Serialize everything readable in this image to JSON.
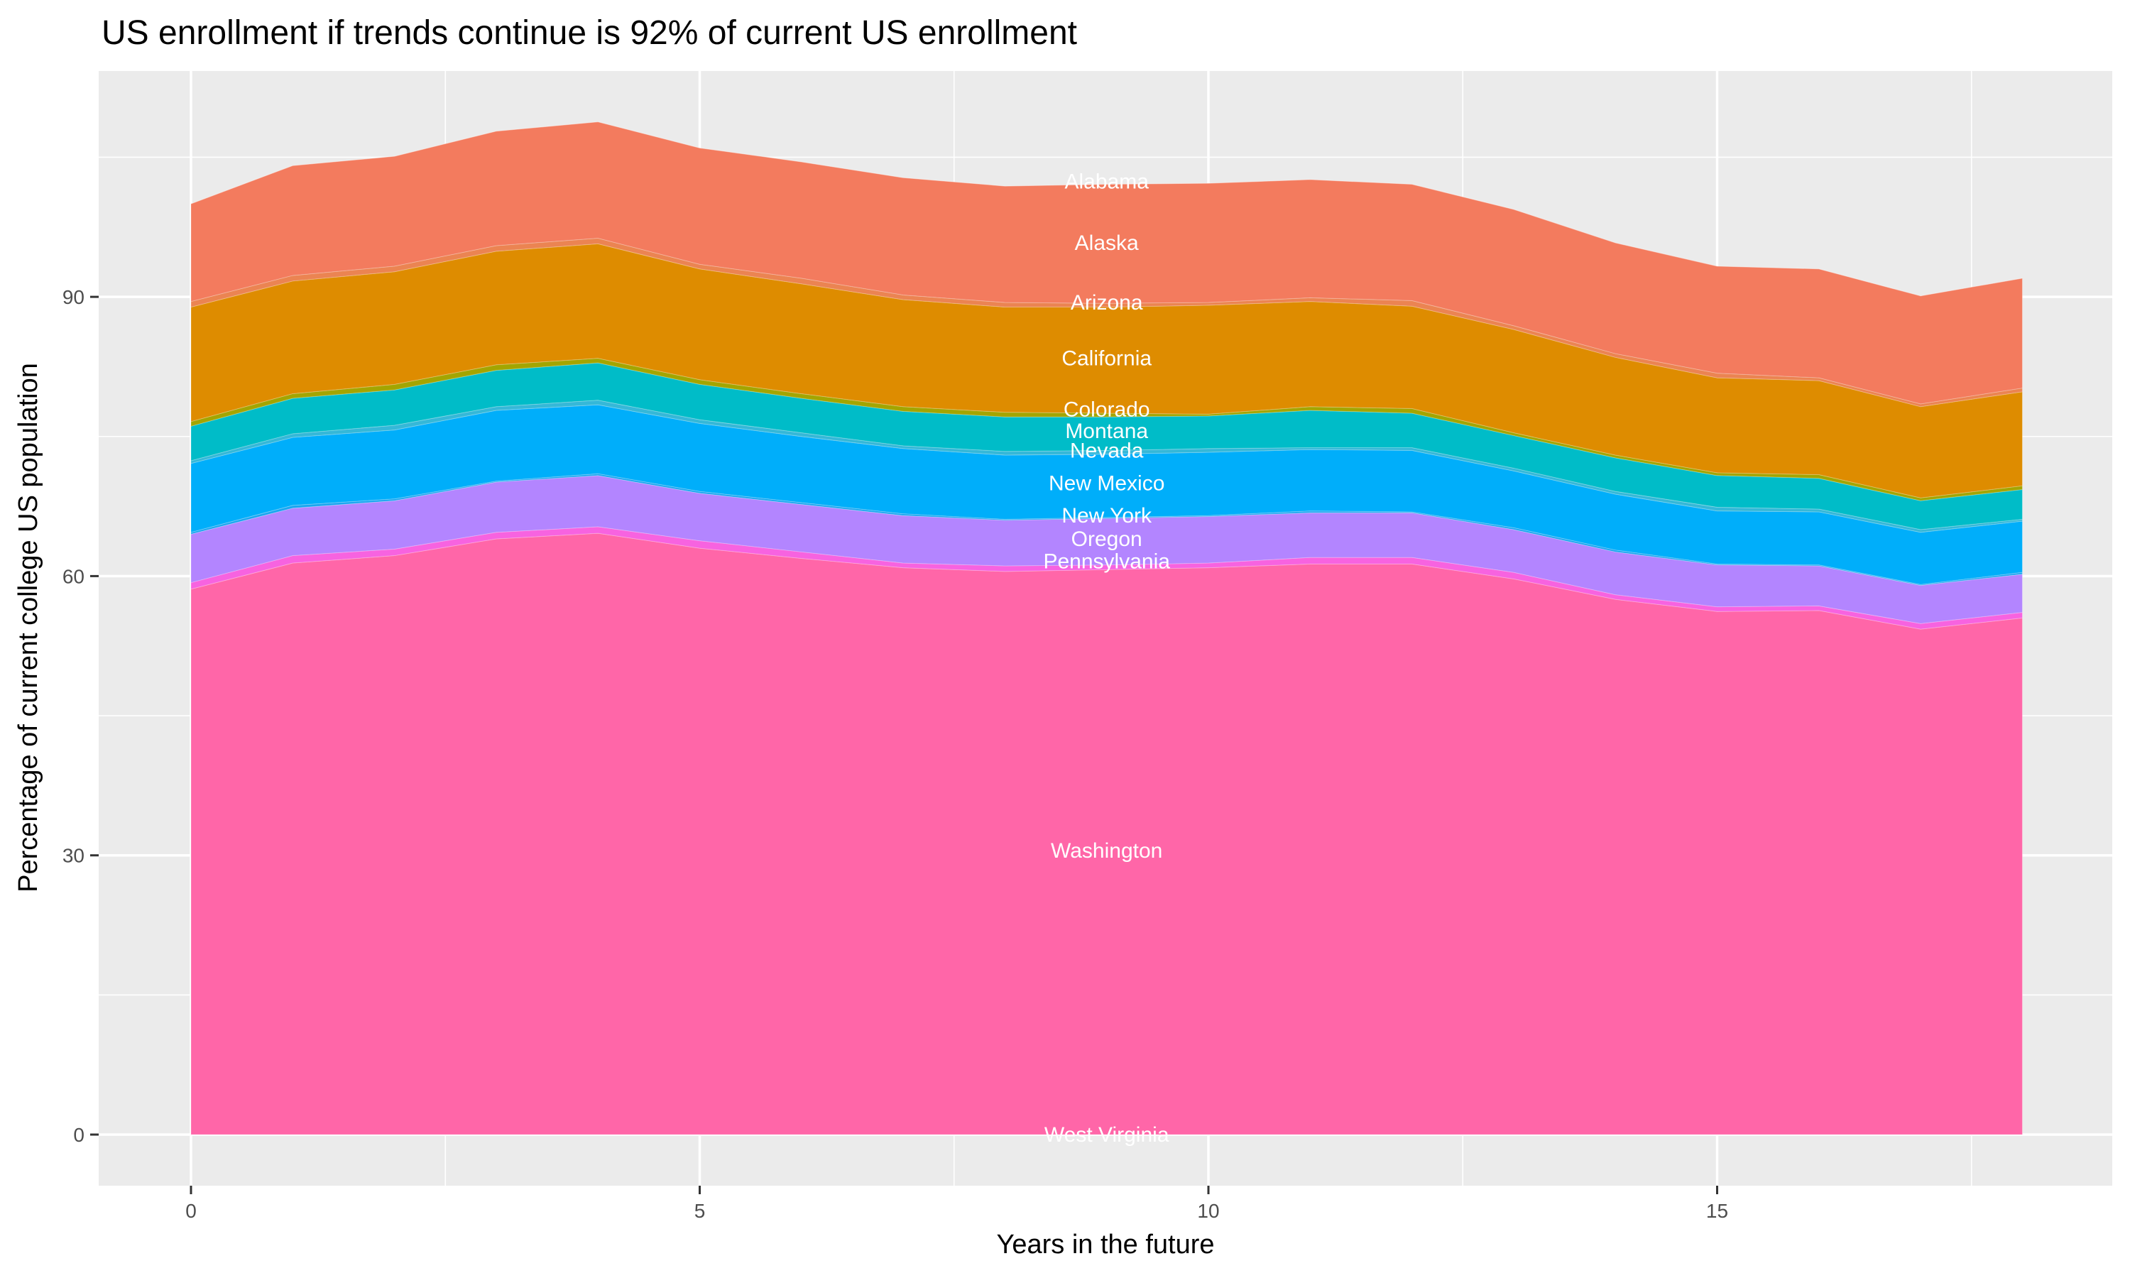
{
  "chart_data": {
    "type": "area",
    "stacked": true,
    "title": "US enrollment if trends continue is 92% of current US enrollment",
    "xlabel": "Years in the future",
    "ylabel": "Percentage of current college US population",
    "xlim": [
      -0.9,
      18.9
    ],
    "ylim": [
      -5.4,
      113.5
    ],
    "x_ticks": [
      0,
      5,
      10,
      15
    ],
    "y_ticks": [
      0,
      30,
      60,
      90
    ],
    "grid": true,
    "legend": "none",
    "x": [
      0,
      1,
      2,
      3,
      4,
      5,
      6,
      7,
      8,
      9,
      10,
      11,
      12,
      13,
      14,
      15,
      16,
      17,
      18
    ],
    "series_stack_order": "bottom-to-top",
    "series": [
      {
        "name": "West Virginia",
        "color": "#FF6C91",
        "values": [
          0,
          0,
          0,
          0,
          0,
          0,
          0,
          0,
          0,
          0,
          0,
          0,
          0,
          0,
          0,
          0,
          0,
          0,
          0
        ]
      },
      {
        "name": "Washington",
        "color": "#FF66A8",
        "values": [
          58.6,
          61.4,
          62.2,
          64.0,
          64.6,
          63.0,
          61.9,
          60.9,
          60.5,
          60.7,
          60.9,
          61.3,
          61.3,
          59.7,
          57.5,
          56.2,
          56.3,
          54.3,
          55.5
        ]
      },
      {
        "name": "Pennsylvania",
        "color": "#F763E0",
        "values": [
          0.7,
          0.8,
          0.7,
          0.7,
          0.7,
          0.8,
          0.7,
          0.5,
          0.6,
          0.5,
          0.5,
          0.7,
          0.7,
          0.7,
          0.5,
          0.5,
          0.5,
          0.6,
          0.6
        ]
      },
      {
        "name": "Oregon",
        "color": "#B385FF",
        "values": [
          5.2,
          5.1,
          5.2,
          5.4,
          5.5,
          5.1,
          5.1,
          5.1,
          4.9,
          5.0,
          5.0,
          4.8,
          4.8,
          4.6,
          4.6,
          4.5,
          4.3,
          4.1,
          4.1
        ]
      },
      {
        "name": "New York",
        "color": "#1AA6F0",
        "values": [
          0.2,
          0.3,
          0.2,
          0.1,
          0.2,
          0.2,
          0.2,
          0.2,
          0.1,
          0.1,
          0.1,
          0.2,
          0.1,
          0.2,
          0.2,
          0.1,
          0.1,
          0.1,
          0.2
        ]
      },
      {
        "name": "New Mexico",
        "color": "#00AEFA",
        "values": [
          7.4,
          7.3,
          7.4,
          7.6,
          7.4,
          7.3,
          7.1,
          7.0,
          6.9,
          6.8,
          6.8,
          6.6,
          6.6,
          6.1,
          6.0,
          5.7,
          5.7,
          5.6,
          5.5
        ]
      },
      {
        "name": "Nevada",
        "color": "#35B8D8",
        "values": [
          0.3,
          0.4,
          0.5,
          0.4,
          0.5,
          0.4,
          0.4,
          0.3,
          0.4,
          0.4,
          0.4,
          0.2,
          0.3,
          0.3,
          0.3,
          0.4,
          0.3,
          0.3,
          0.2
        ]
      },
      {
        "name": "Montana",
        "color": "#00BCC8",
        "values": [
          3.7,
          3.8,
          3.8,
          3.9,
          4.0,
          3.8,
          3.7,
          3.7,
          3.7,
          3.6,
          3.5,
          4.0,
          3.7,
          3.5,
          3.6,
          3.4,
          3.3,
          3.1,
          3.2
        ]
      },
      {
        "name": "Colorado",
        "color": "#A3A500",
        "values": [
          0.5,
          0.5,
          0.6,
          0.6,
          0.5,
          0.5,
          0.5,
          0.5,
          0.5,
          0.4,
          0.2,
          0.4,
          0.5,
          0.3,
          0.3,
          0.3,
          0.4,
          0.3,
          0.4
        ]
      },
      {
        "name": "California",
        "color": "#DE8C00",
        "values": [
          12.3,
          12.1,
          12.1,
          12.2,
          12.3,
          11.9,
          11.8,
          11.5,
          11.3,
          11.4,
          11.7,
          11.3,
          11.0,
          11.1,
          10.5,
          10.2,
          10.1,
          9.8,
          10.1
        ]
      },
      {
        "name": "Arizona",
        "color": "#EB8452",
        "values": [
          0.6,
          0.6,
          0.6,
          0.6,
          0.6,
          0.5,
          0.6,
          0.5,
          0.5,
          0.4,
          0.3,
          0.4,
          0.6,
          0.4,
          0.4,
          0.5,
          0.3,
          0.3,
          0.4
        ]
      },
      {
        "name": "Alaska",
        "color": "#F37B5E",
        "values": [
          10.5,
          11.8,
          11.8,
          12.3,
          12.5,
          12.5,
          12.5,
          12.6,
          12.5,
          12.8,
          12.8,
          12.7,
          12.5,
          12.5,
          11.9,
          11.5,
          11.7,
          11.6,
          11.8
        ]
      },
      {
        "name": "Alabama",
        "color": "#F8766D",
        "values": [
          0,
          0,
          0,
          0,
          0,
          0,
          0,
          0,
          0,
          0,
          0,
          0,
          0,
          0,
          0,
          0,
          0,
          0,
          0
        ]
      }
    ],
    "annotations": [
      {
        "text": "Alabama",
        "x": 9,
        "y": 102.4
      },
      {
        "text": "Alaska",
        "x": 9,
        "y": 95.8
      },
      {
        "text": "Arizona",
        "x": 9,
        "y": 89.4
      },
      {
        "text": "California",
        "x": 9,
        "y": 83.4
      },
      {
        "text": "Colorado",
        "x": 9,
        "y": 77.9
      },
      {
        "text": "Montana",
        "x": 9,
        "y": 75.6
      },
      {
        "text": "Nevada",
        "x": 9,
        "y": 73.5
      },
      {
        "text": "New Mexico",
        "x": 9,
        "y": 70.0
      },
      {
        "text": "New York",
        "x": 9,
        "y": 66.5
      },
      {
        "text": "Oregon",
        "x": 9,
        "y": 64.0
      },
      {
        "text": "Pennsylvania",
        "x": 9,
        "y": 61.6
      },
      {
        "text": "Washington",
        "x": 9,
        "y": 30.5
      },
      {
        "text": "West Virginia",
        "x": 9,
        "y": 0
      }
    ],
    "panel_background": "#EBEBEB",
    "grid_color": "#FFFFFF"
  }
}
